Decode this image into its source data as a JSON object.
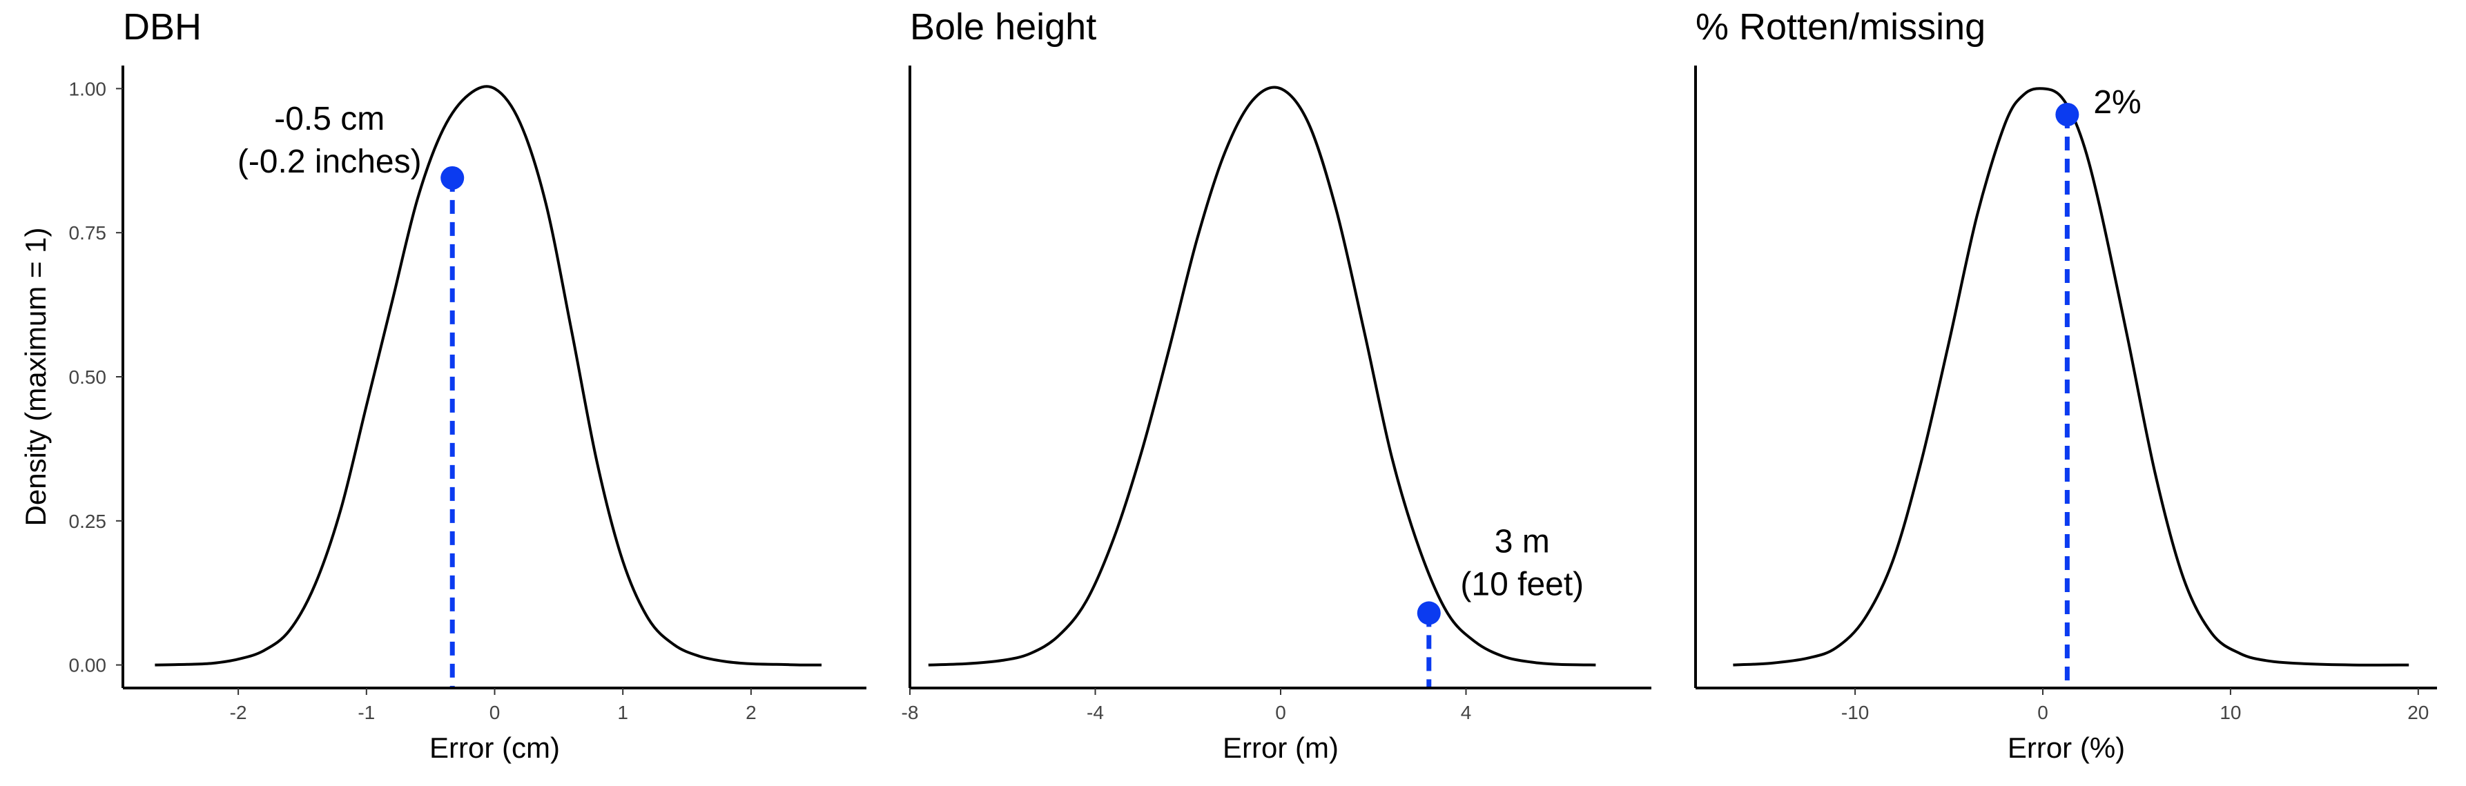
{
  "chart_data": [
    {
      "type": "line",
      "title": "DBH",
      "xlabel": "Error (cm)",
      "ylabel": "Density (maximum = 1)",
      "xlim": [
        -2.9,
        2.9
      ],
      "ylim": [
        -0.04,
        1.04
      ],
      "xticks": [
        -2,
        -1,
        0,
        1,
        2
      ],
      "yticks": [
        0,
        0.25,
        0.5,
        0.75,
        1.0
      ],
      "ytick_labels": [
        "0.00",
        "0.25",
        "0.50",
        "0.75",
        "1.00"
      ],
      "x": [
        -2.65,
        -2.4,
        -2.2,
        -2.0,
        -1.8,
        -1.6,
        -1.4,
        -1.2,
        -1.0,
        -0.8,
        -0.6,
        -0.4,
        -0.2,
        0.0,
        0.2,
        0.4,
        0.6,
        0.8,
        1.0,
        1.2,
        1.4,
        1.6,
        1.8,
        2.0,
        2.2,
        2.4,
        2.55
      ],
      "y": [
        0.0,
        0.001,
        0.003,
        0.01,
        0.025,
        0.06,
        0.14,
        0.27,
        0.45,
        0.63,
        0.81,
        0.93,
        0.99,
        1.0,
        0.94,
        0.8,
        0.58,
        0.35,
        0.18,
        0.08,
        0.035,
        0.015,
        0.006,
        0.002,
        0.001,
        0.0,
        0.0
      ],
      "highlight": {
        "x": -0.33,
        "y": 0.845,
        "color": "#0b3bf0",
        "label_lines": [
          "-0.5 cm",
          "(-0.2 inches)"
        ],
        "label_position": "upper-left"
      },
      "grid": false,
      "legend": "none"
    },
    {
      "type": "line",
      "title": "Bole height",
      "xlabel": "Error (m)",
      "ylabel": "",
      "xlim": [
        -8.0,
        8.0
      ],
      "ylim": [
        -0.04,
        1.04
      ],
      "xticks": [
        -8,
        -4,
        0,
        4
      ],
      "yticks": [],
      "x": [
        -7.6,
        -6.8,
        -6.0,
        -5.4,
        -4.8,
        -4.2,
        -3.6,
        -3.0,
        -2.4,
        -1.8,
        -1.2,
        -0.6,
        0.0,
        0.6,
        1.2,
        1.8,
        2.4,
        3.0,
        3.6,
        4.2,
        4.8,
        5.4,
        6.0,
        6.8
      ],
      "y": [
        0.0,
        0.002,
        0.008,
        0.02,
        0.05,
        0.11,
        0.22,
        0.37,
        0.55,
        0.74,
        0.89,
        0.98,
        1.0,
        0.94,
        0.79,
        0.58,
        0.36,
        0.2,
        0.09,
        0.04,
        0.015,
        0.005,
        0.001,
        0.0
      ],
      "highlight": {
        "x": 3.2,
        "y": 0.09,
        "color": "#0b3bf0",
        "label_lines": [
          "3 m",
          "(10 feet)"
        ],
        "label_position": "upper-right"
      },
      "grid": false,
      "legend": "none"
    },
    {
      "type": "line",
      "title": "% Rotten/missing",
      "xlabel": "Error (%)",
      "ylabel": "",
      "xlim": [
        -18.5,
        21.0
      ],
      "ylim": [
        -0.04,
        1.04
      ],
      "xticks": [
        -10,
        0,
        10,
        20
      ],
      "yticks": [],
      "x": [
        -16.5,
        -14.5,
        -12.5,
        -11.0,
        -9.5,
        -8.0,
        -6.5,
        -5.0,
        -3.5,
        -2.0,
        -1.0,
        0.0,
        1.0,
        2.0,
        3.0,
        4.5,
        6.0,
        7.5,
        9.0,
        10.5,
        12.0,
        14.0,
        16.5,
        19.5
      ],
      "y": [
        0.0,
        0.003,
        0.012,
        0.03,
        0.08,
        0.18,
        0.35,
        0.56,
        0.78,
        0.94,
        0.99,
        1.0,
        0.985,
        0.92,
        0.8,
        0.57,
        0.33,
        0.15,
        0.055,
        0.02,
        0.007,
        0.002,
        0.0,
        0.0
      ],
      "highlight": {
        "x": 1.3,
        "y": 0.955,
        "color": "#0b3bf0",
        "label_lines": [
          "2%"
        ],
        "label_position": "right"
      },
      "grid": false,
      "legend": "none"
    }
  ]
}
